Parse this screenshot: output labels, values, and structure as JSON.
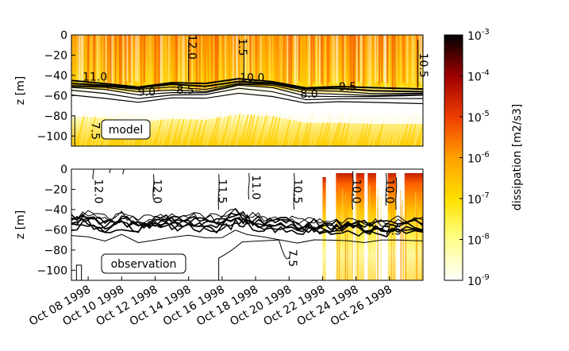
{
  "chart_data": [
    {
      "type": "heatmap",
      "panel": "model",
      "label": "model",
      "ylabel": "z [m]",
      "ylim": [
        -110,
        0
      ],
      "xlim": [
        "1998-10-07",
        "1998-10-28"
      ],
      "yticks": [
        "0",
        "−20",
        "−40",
        "−60",
        "−80",
        "−100"
      ],
      "ytick_values": [
        0,
        -20,
        -40,
        -60,
        -80,
        -100
      ],
      "isotherms": {
        "description": "temperature contours (thermocline) over dissipation field",
        "thermocline_depth_m": {
          "x": [
            "1998-10-07",
            "1998-10-09",
            "1998-10-11",
            "1998-10-13",
            "1998-10-15",
            "1998-10-17",
            "1998-10-19",
            "1998-10-21",
            "1998-10-23",
            "1998-10-25",
            "1998-10-28"
          ],
          "y": [
            -47,
            -49,
            -53,
            -50,
            -51,
            -45,
            -47,
            -54,
            -54,
            -55,
            -55
          ]
        },
        "levels": [
          11.0,
          10.5,
          10.0,
          9.5,
          9.0,
          8.5,
          8.0
        ],
        "offsets": [
          -2,
          0,
          2,
          4,
          6,
          9,
          13
        ],
        "labels": [
          {
            "text": "12.0",
            "x": "1998-10-14",
            "y": -12,
            "rotate": 90
          },
          {
            "text": "1.5",
            "x": "1998-10-17",
            "y": -12,
            "rotate": 90
          },
          {
            "text": "10.5",
            "x": "1998-10-27.8",
            "y": -30,
            "rotate": 90
          },
          {
            "text": "11.0",
            "x": "1998-10-08.4",
            "y": -45,
            "rotate": 0
          },
          {
            "text": "9.0",
            "x": "1998-10-11.5",
            "y": -60,
            "rotate": 0
          },
          {
            "text": "8.5",
            "x": "1998-10-13.8",
            "y": -58,
            "rotate": 0
          },
          {
            "text": "10.0",
            "x": "1998-10-17.8",
            "y": -46,
            "rotate": 0
          },
          {
            "text": "8.0",
            "x": "1998-10-21.2",
            "y": -62,
            "rotate": 0
          },
          {
            "text": "9.5",
            "x": "1998-10-23.5",
            "y": -55,
            "rotate": 0
          },
          {
            "text": "7.5",
            "x": "1998-10-08.2",
            "y": -95,
            "rotate": 90
          }
        ]
      }
    },
    {
      "type": "heatmap",
      "panel": "observation",
      "label": "observation",
      "ylabel": "z [m]",
      "ylim": [
        -110,
        0
      ],
      "xlim": [
        "1998-10-07",
        "1998-10-28"
      ],
      "yticks": [
        "0",
        "−20",
        "−40",
        "−60",
        "−80",
        "−100"
      ],
      "ytick_values": [
        0,
        -20,
        -40,
        -60,
        -80,
        -100
      ],
      "xticks": [
        "Oct 08 1998",
        "Oct 10 1998",
        "Oct 12 1998",
        "Oct 14 1998",
        "Oct 16 1998",
        "Oct 18 1998",
        "Oct 20 1998",
        "Oct 22 1998",
        "Oct 24 1998",
        "Oct 26 1998"
      ],
      "observation_profiles": {
        "description": "dissipation profiles observed only near the end of the record",
        "intervals": [
          [
            "1998-10-22.0",
            "1998-10-22.2"
          ],
          [
            "1998-10-22.8",
            "1998-10-23.8"
          ],
          [
            "1998-10-24.0",
            "1998-10-24.5"
          ],
          [
            "1998-10-24.7",
            "1998-10-25.2"
          ],
          [
            "1998-10-25.9",
            "1998-10-26.4"
          ],
          [
            "1998-10-26.9",
            "1998-10-28.0"
          ]
        ]
      },
      "isotherms": {
        "levels": [
          11.0,
          10.5,
          10.0,
          9.5,
          9.0,
          8.5,
          8.0
        ],
        "labels": [
          {
            "text": "12.0",
            "x": "1998-10-08.4",
            "y": -22,
            "rotate": 90
          },
          {
            "text": "12.0",
            "x": "1998-10-11.9",
            "y": -22,
            "rotate": 90
          },
          {
            "text": "11.5",
            "x": "1998-10-15.8",
            "y": -22,
            "rotate": 90
          },
          {
            "text": "11.0",
            "x": "1998-10-17.8",
            "y": -18,
            "rotate": 90
          },
          {
            "text": "10.5",
            "x": "1998-10-20.3",
            "y": -22,
            "rotate": 90
          },
          {
            "text": "10.0",
            "x": "1998-10-23.8",
            "y": -22,
            "rotate": 90
          },
          {
            "text": "10.0",
            "x": "1998-10-25.8",
            "y": -22,
            "rotate": 90
          },
          {
            "text": "7.5",
            "x": "1998-10-20.0",
            "y": -88,
            "rotate": 90
          },
          {
            "text": "7.5",
            "x": "1998-10-26.2",
            "y": -65,
            "rotate": 0
          }
        ]
      }
    }
  ],
  "colorbar": {
    "label": "dissipation [m2/s3]",
    "ticks": [
      {
        "base": "10",
        "exp": "-3",
        "value": 0.001
      },
      {
        "base": "10",
        "exp": "-4",
        "value": 0.0001
      },
      {
        "base": "10",
        "exp": "-5",
        "value": 1e-05
      },
      {
        "base": "10",
        "exp": "-6",
        "value": 1e-06
      },
      {
        "base": "10",
        "exp": "-7",
        "value": 1e-07
      },
      {
        "base": "10",
        "exp": "-8",
        "value": 1e-08
      },
      {
        "base": "10",
        "exp": "-9",
        "value": 1e-09
      }
    ],
    "scale": "log",
    "range": [
      1e-09,
      0.001
    ],
    "colormap": [
      "#ffffff",
      "#ffff60",
      "#ffd000",
      "#ff8c00",
      "#e03000",
      "#a00000",
      "#000000"
    ]
  }
}
